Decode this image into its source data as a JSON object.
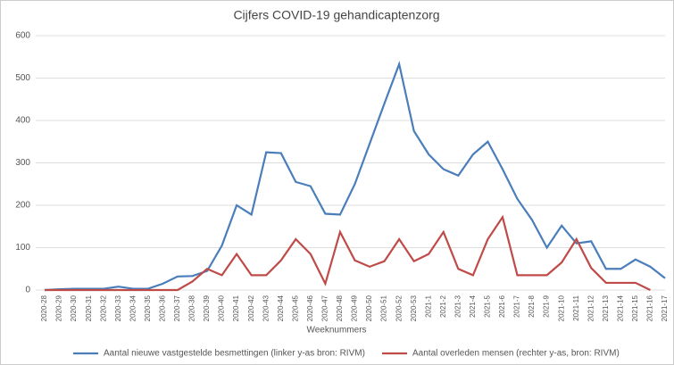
{
  "chart_data": {
    "type": "line",
    "title": "Cijfers COVID-19 gehandicaptenzorg",
    "x_label": "Weeknummers",
    "categories": [
      "2020-28",
      "2020-29",
      "2020-30",
      "2020-31",
      "2020-32",
      "2020-33",
      "2020-34",
      "2020-35",
      "2020-36",
      "2020-37",
      "2020-38",
      "2020-39",
      "2020-40",
      "2020-41",
      "2020-42",
      "2020-43",
      "2020-44",
      "2020-45",
      "2020-46",
      "2020-47",
      "2020-48",
      "2020-49",
      "2020-50",
      "2020-51",
      "2020-52",
      "2020-53",
      "2021-1",
      "2021-2",
      "2021-3",
      "2021-4",
      "2021-5",
      "2021-6",
      "2021-7",
      "2021-8",
      "2021-9",
      "2021-10",
      "2021-11",
      "2021-12",
      "2021-13",
      "2021-14",
      "2021-15",
      "2021-16",
      "2021-17"
    ],
    "series": [
      {
        "name": "Aantal nieuwe vastgestelde besmettingen  (linker y-as bron: RIVM)",
        "color": "#4a7ebb",
        "values": [
          0,
          2,
          3,
          3,
          3,
          8,
          3,
          3,
          15,
          32,
          33,
          45,
          105,
          200,
          178,
          325,
          323,
          255,
          245,
          180,
          178,
          250,
          345,
          440,
          533,
          375,
          320,
          285,
          270,
          320,
          350,
          285,
          215,
          165,
          100,
          152,
          110,
          115,
          50,
          50,
          72,
          55,
          28
        ]
      },
      {
        "name": "Aantal overleden mensen  (rechter y-as, bron: RIVM)",
        "color": "#be4b48",
        "values": [
          0,
          0,
          0,
          0,
          0,
          0,
          0,
          0,
          0,
          0,
          20,
          50,
          35,
          85,
          35,
          35,
          70,
          120,
          85,
          15,
          137,
          70,
          55,
          68,
          120,
          68,
          85,
          137,
          50,
          35,
          120,
          172,
          35,
          35,
          35,
          65,
          120,
          52,
          17,
          17,
          17,
          0,
          null
        ]
      }
    ],
    "ylim": [
      0,
      600
    ],
    "yticks": [
      0,
      100,
      200,
      300,
      400,
      500,
      600
    ],
    "grid": true
  }
}
